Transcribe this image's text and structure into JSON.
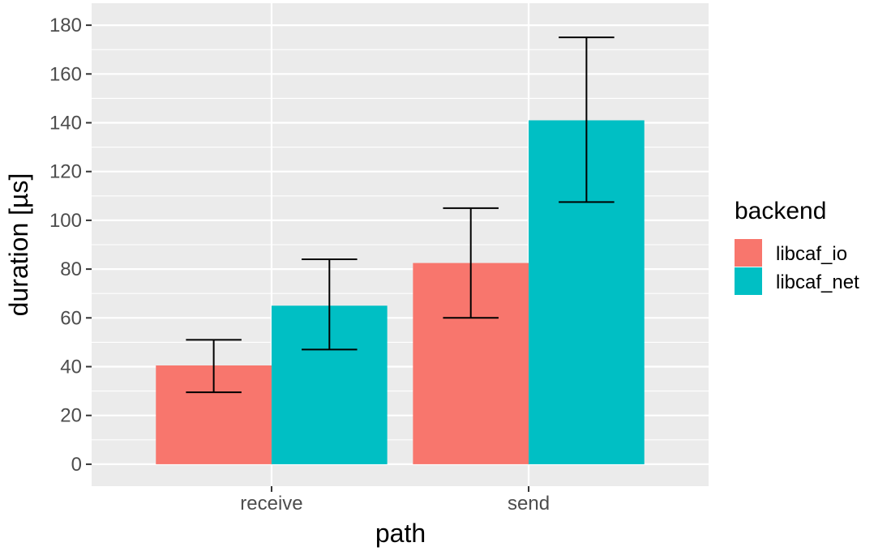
{
  "chart_data": {
    "type": "bar",
    "x_title": "path",
    "y_title": "duration [µs]",
    "categories": [
      "receive",
      "send"
    ],
    "series": [
      {
        "name": "libcaf_io",
        "color": "#F8766D",
        "values": [
          40.5,
          82.5
        ],
        "error_low": [
          29.5,
          60
        ],
        "error_high": [
          51,
          105
        ]
      },
      {
        "name": "libcaf_net",
        "color": "#00BFC4",
        "values": [
          65,
          141
        ],
        "error_low": [
          47,
          107.5
        ],
        "error_high": [
          84,
          175
        ]
      }
    ],
    "ylim": [
      -9,
      189
    ],
    "y_ticks": [
      0,
      20,
      40,
      60,
      80,
      100,
      120,
      140,
      160,
      180
    ],
    "legend": {
      "title": "backend",
      "position": "right"
    },
    "grid": true,
    "panel_background": "#EBEBEB",
    "grid_color": "#FFFFFF"
  }
}
